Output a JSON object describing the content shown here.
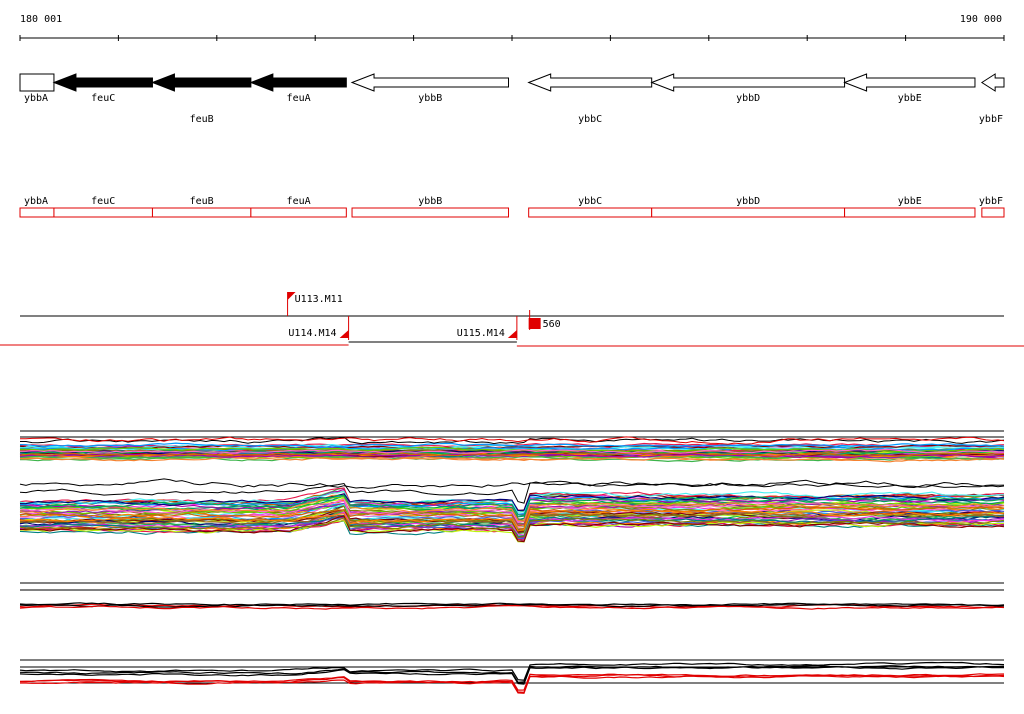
{
  "colors": {
    "ink": "#000000",
    "annotation": "#e00000",
    "paper": "#ffffff"
  },
  "ruler": {
    "start_label": "180 001",
    "end_label": "190 000",
    "start_bp": 180001,
    "end_bp": 190000
  },
  "genes": [
    {
      "id": "ybbA",
      "name": "ybbA",
      "start": 180001,
      "end": 180346,
      "strand": "+",
      "filled": false,
      "label_row": 1
    },
    {
      "id": "feuC",
      "name": "feuC",
      "start": 180346,
      "end": 181347,
      "strand": "-",
      "filled": true,
      "label_row": 0
    },
    {
      "id": "feuB",
      "name": "feuB",
      "start": 181347,
      "end": 182347,
      "strand": "-",
      "filled": true,
      "label_row": 1
    },
    {
      "id": "feuA",
      "name": "feuA",
      "start": 182347,
      "end": 183317,
      "strand": "-",
      "filled": true,
      "label_row": 0
    },
    {
      "id": "ybbB",
      "name": "ybbB",
      "start": 183375,
      "end": 184965,
      "strand": "-",
      "filled": false,
      "label_row": 0
    },
    {
      "id": "ybbC",
      "name": "ybbC",
      "start": 185170,
      "end": 186420,
      "strand": "-",
      "filled": false,
      "label_row": 1
    },
    {
      "id": "ybbD",
      "name": "ybbD",
      "start": 186420,
      "end": 188380,
      "strand": "-",
      "filled": false,
      "label_row": 0
    },
    {
      "id": "ybbE",
      "name": "ybbE",
      "start": 188380,
      "end": 189705,
      "strand": "-",
      "filled": false,
      "label_row": 0
    },
    {
      "id": "ybbF",
      "name": "ybbF",
      "start": 189775,
      "end": 190000,
      "strand": "-",
      "filled": false,
      "label_row": 1
    }
  ],
  "transcripts": [
    {
      "name": "ybbA",
      "start": 180001,
      "end": 180346
    },
    {
      "name": "feuC",
      "start": 180346,
      "end": 181347
    },
    {
      "name": "feuB",
      "start": 181347,
      "end": 182347
    },
    {
      "name": "feuA",
      "start": 182347,
      "end": 183317
    },
    {
      "name": "ybbB",
      "start": 183375,
      "end": 184965
    },
    {
      "name": "ybbC",
      "start": 185170,
      "end": 186420
    },
    {
      "name": "ybbD",
      "start": 186420,
      "end": 188380
    },
    {
      "name": "ybbE",
      "start": 188380,
      "end": 189705
    },
    {
      "name": "ybbF",
      "start": 189775,
      "end": 190000
    }
  ],
  "promoters": [
    {
      "name": "U113.M11",
      "pos": 182720,
      "flag": "top"
    },
    {
      "name": "U114.M14",
      "pos": 183340,
      "flag": "bottom"
    },
    {
      "name": "U115.M14",
      "pos": 185050,
      "flag": "bottom"
    },
    {
      "name": "560",
      "pos": 185190,
      "flag": "cluster"
    }
  ],
  "breakpoints": [
    183340,
    185050
  ]
}
